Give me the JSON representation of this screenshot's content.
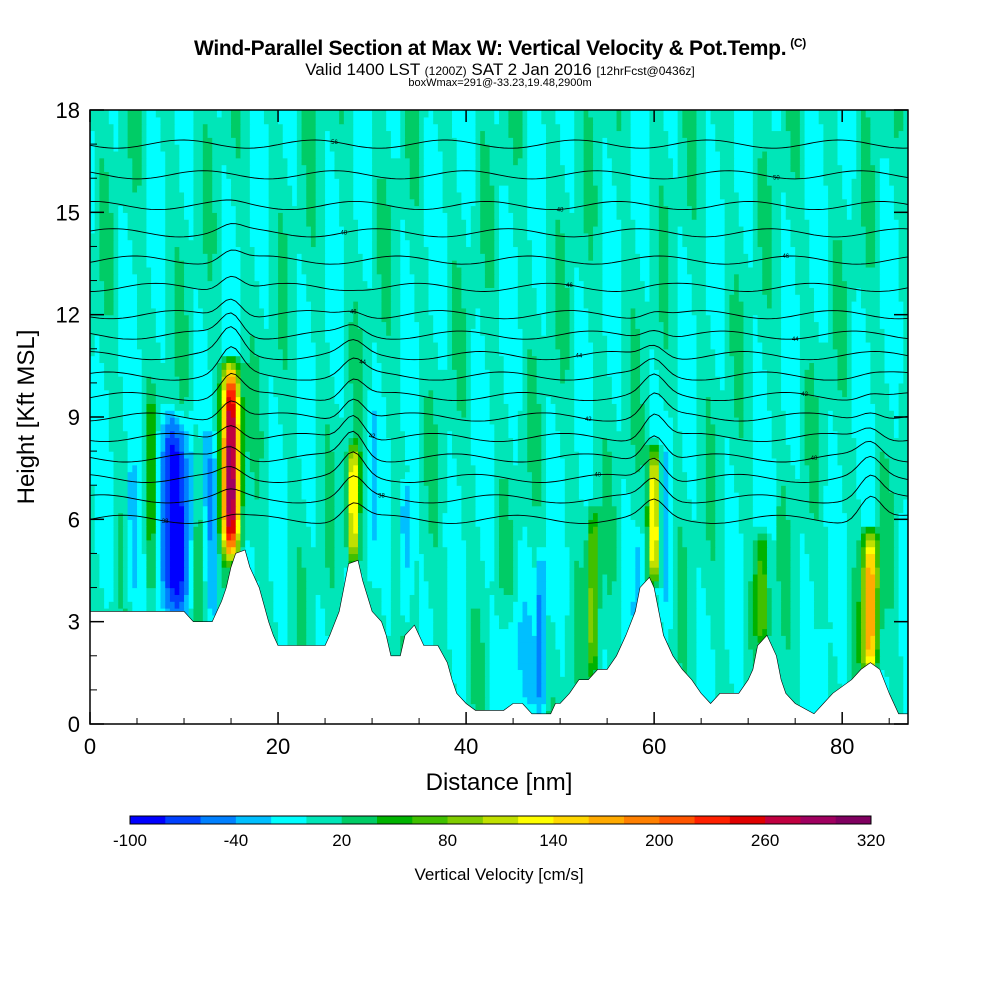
{
  "header": {
    "title": "Wind-Parallel Section at Max W: Vertical Velocity & Pot.Temp.",
    "copyright": "(C)",
    "valid_main": "Valid 1400 LST",
    "valid_utc": "(1200Z)",
    "valid_date": "SAT 2 Jan 2016",
    "forecast": "[12hrFcst@0436z]",
    "box_info": "boxWmax=291@-33.23,19.48,2900m"
  },
  "chart_data": {
    "type": "heatmap",
    "xlabel": "Distance [nm]",
    "ylabel": "Height [Kft MSL]",
    "xlim": [
      0,
      87
    ],
    "ylim": [
      0,
      18
    ],
    "x_ticks": [
      0,
      20,
      40,
      60,
      80
    ],
    "y_ticks": [
      0,
      3,
      6,
      9,
      12,
      15,
      18
    ],
    "background_value_cm_s": 0,
    "terrain_kft": [
      [
        0,
        3.3
      ],
      [
        5,
        3.3
      ],
      [
        9,
        3.3
      ],
      [
        10,
        3.3
      ],
      [
        11,
        3.0
      ],
      [
        13,
        3.0
      ],
      [
        13.5,
        3.3
      ],
      [
        14,
        3.6
      ],
      [
        14.5,
        4.0
      ],
      [
        15,
        4.6
      ],
      [
        15.5,
        5.0
      ],
      [
        16.5,
        5.1
      ],
      [
        17,
        4.6
      ],
      [
        18,
        4.0
      ],
      [
        18.5,
        3.5
      ],
      [
        19,
        3.0
      ],
      [
        19.5,
        2.6
      ],
      [
        20,
        2.3
      ],
      [
        25,
        2.3
      ],
      [
        25.5,
        2.6
      ],
      [
        26.5,
        3.3
      ],
      [
        27,
        4.0
      ],
      [
        27.5,
        4.7
      ],
      [
        28.5,
        4.8
      ],
      [
        29,
        4.2
      ],
      [
        30,
        3.3
      ],
      [
        31,
        3.0
      ],
      [
        31.5,
        2.6
      ],
      [
        32,
        2.0
      ],
      [
        33,
        2.0
      ],
      [
        33.5,
        2.6
      ],
      [
        34.5,
        2.9
      ],
      [
        35,
        2.6
      ],
      [
        35.5,
        2.3
      ],
      [
        37,
        2.3
      ],
      [
        38,
        1.8
      ],
      [
        38.5,
        1.3
      ],
      [
        39,
        0.9
      ],
      [
        40,
        0.6
      ],
      [
        41,
        0.4
      ],
      [
        44,
        0.4
      ],
      [
        45,
        0.6
      ],
      [
        46,
        0.6
      ],
      [
        47,
        0.3
      ],
      [
        49,
        0.3
      ],
      [
        49.5,
        0.6
      ],
      [
        50,
        0.6
      ],
      [
        51,
        0.9
      ],
      [
        52,
        1.3
      ],
      [
        53,
        1.3
      ],
      [
        54,
        1.6
      ],
      [
        55,
        1.6
      ],
      [
        56,
        2.0
      ],
      [
        57,
        2.6
      ],
      [
        58,
        3.3
      ],
      [
        58.5,
        4.0
      ],
      [
        59.5,
        4.3
      ],
      [
        60,
        4.0
      ],
      [
        60.5,
        3.3
      ],
      [
        61,
        2.6
      ],
      [
        62,
        2.0
      ],
      [
        63,
        1.6
      ],
      [
        64,
        1.3
      ],
      [
        65,
        0.9
      ],
      [
        66,
        0.6
      ],
      [
        67,
        0.9
      ],
      [
        69,
        0.9
      ],
      [
        70,
        1.3
      ],
      [
        70.5,
        1.6
      ],
      [
        71,
        2.3
      ],
      [
        72,
        2.6
      ],
      [
        73,
        2.0
      ],
      [
        73.5,
        1.3
      ],
      [
        74,
        0.9
      ],
      [
        75,
        0.6
      ],
      [
        77,
        0.3
      ],
      [
        78,
        0.6
      ],
      [
        79,
        0.9
      ],
      [
        81,
        1.3
      ],
      [
        82,
        1.6
      ],
      [
        83,
        1.8
      ],
      [
        84,
        1.6
      ],
      [
        85,
        0.9
      ],
      [
        86,
        0.3
      ],
      [
        87,
        0.3
      ]
    ],
    "updraft_cores": [
      {
        "x": 15.0,
        "base": 5.0,
        "top": 10.5,
        "halfwidth": 0.9,
        "peak_cm_s": 291
      },
      {
        "x": 28.0,
        "base": 4.8,
        "top": 8.0,
        "halfwidth": 0.6,
        "peak_cm_s": 150
      },
      {
        "x": 53.5,
        "base": 1.5,
        "top": 6.2,
        "halfwidth": 0.6,
        "peak_cm_s": 90
      },
      {
        "x": 60.0,
        "base": 4.3,
        "top": 8.0,
        "halfwidth": 0.6,
        "peak_cm_s": 160
      },
      {
        "x": 71.5,
        "base": 2.6,
        "top": 5.5,
        "halfwidth": 0.8,
        "peak_cm_s": 70
      },
      {
        "x": 83.0,
        "base": 1.6,
        "top": 5.5,
        "halfwidth": 0.8,
        "peak_cm_s": 180
      },
      {
        "x": 6.5,
        "base": 3.3,
        "top": 9.5,
        "halfwidth": 0.5,
        "peak_cm_s": 50
      },
      {
        "x": 11.5,
        "base": 3.0,
        "top": 9.0,
        "halfwidth": 0.5,
        "peak_cm_s": 40
      }
    ],
    "downdraft_cores": [
      {
        "x": 9.0,
        "base": 3.3,
        "top": 9.0,
        "halfwidth": 1.8,
        "peak_cm_s": -90
      },
      {
        "x": 4.5,
        "base": 3.3,
        "top": 7.5,
        "halfwidth": 0.7,
        "peak_cm_s": -40
      },
      {
        "x": 13.0,
        "base": 3.0,
        "top": 8.5,
        "halfwidth": 0.6,
        "peak_cm_s": -40
      },
      {
        "x": 33.5,
        "base": 3.0,
        "top": 7.0,
        "halfwidth": 0.7,
        "peak_cm_s": -50
      },
      {
        "x": 48.0,
        "base": 0.4,
        "top": 5.0,
        "halfwidth": 0.5,
        "peak_cm_s": -60
      },
      {
        "x": 45.0,
        "base": 0.6,
        "top": 3.5,
        "halfwidth": 1.5,
        "peak_cm_s": -25
      },
      {
        "x": 58.5,
        "base": 3.3,
        "top": 5.5,
        "halfwidth": 0.5,
        "peak_cm_s": -30
      },
      {
        "x": 61.5,
        "base": 3.0,
        "top": 9.0,
        "halfwidth": 0.4,
        "peak_cm_s": -30
      },
      {
        "x": 78.0,
        "base": 0.6,
        "top": 2.5,
        "halfwidth": 0.6,
        "peak_cm_s": -30
      },
      {
        "x": 30.0,
        "base": 4.0,
        "top": 9.5,
        "halfwidth": 0.4,
        "peak_cm_s": -25
      },
      {
        "x": 72.5,
        "base": 4.0,
        "top": 8.0,
        "halfwidth": 0.3,
        "peak_cm_s": -25
      }
    ],
    "isentropes": [
      {
        "base_kft": 6.0,
        "label": "38"
      },
      {
        "base_kft": 6.6,
        "label": "38"
      },
      {
        "base_kft": 7.2,
        "label": "40"
      },
      {
        "base_kft": 7.8,
        "label": "40"
      },
      {
        "base_kft": 8.4,
        "label": "42"
      },
      {
        "base_kft": 9.0,
        "label": "42"
      },
      {
        "base_kft": 9.6,
        "label": "42"
      },
      {
        "base_kft": 10.2,
        "label": "44"
      },
      {
        "base_kft": 10.8,
        "label": "44"
      },
      {
        "base_kft": 11.4,
        "label": "44"
      },
      {
        "base_kft": 12.0,
        "label": "46"
      },
      {
        "base_kft": 12.8,
        "label": "46"
      },
      {
        "base_kft": 13.6,
        "label": "46"
      },
      {
        "base_kft": 14.4,
        "label": "48"
      },
      {
        "base_kft": 15.2,
        "label": "48"
      },
      {
        "base_kft": 16.1,
        "label": "50"
      },
      {
        "base_kft": 17.0,
        "label": "56"
      }
    ],
    "colorbar": {
      "label": "Vertical Velocity [cm/s]",
      "tick_labels": [
        "-100",
        "-40",
        "20",
        "80",
        "140",
        "200",
        "260",
        "320"
      ],
      "colors": [
        "#0000ff",
        "#0040ff",
        "#0080ff",
        "#00bfff",
        "#00ffff",
        "#00e6b8",
        "#00cc66",
        "#00b300",
        "#40c000",
        "#80cc00",
        "#c0e000",
        "#ffff00",
        "#ffd700",
        "#ffaa00",
        "#ff8000",
        "#ff5500",
        "#ff2000",
        "#e00000",
        "#c00040",
        "#a00060",
        "#800060"
      ]
    }
  }
}
